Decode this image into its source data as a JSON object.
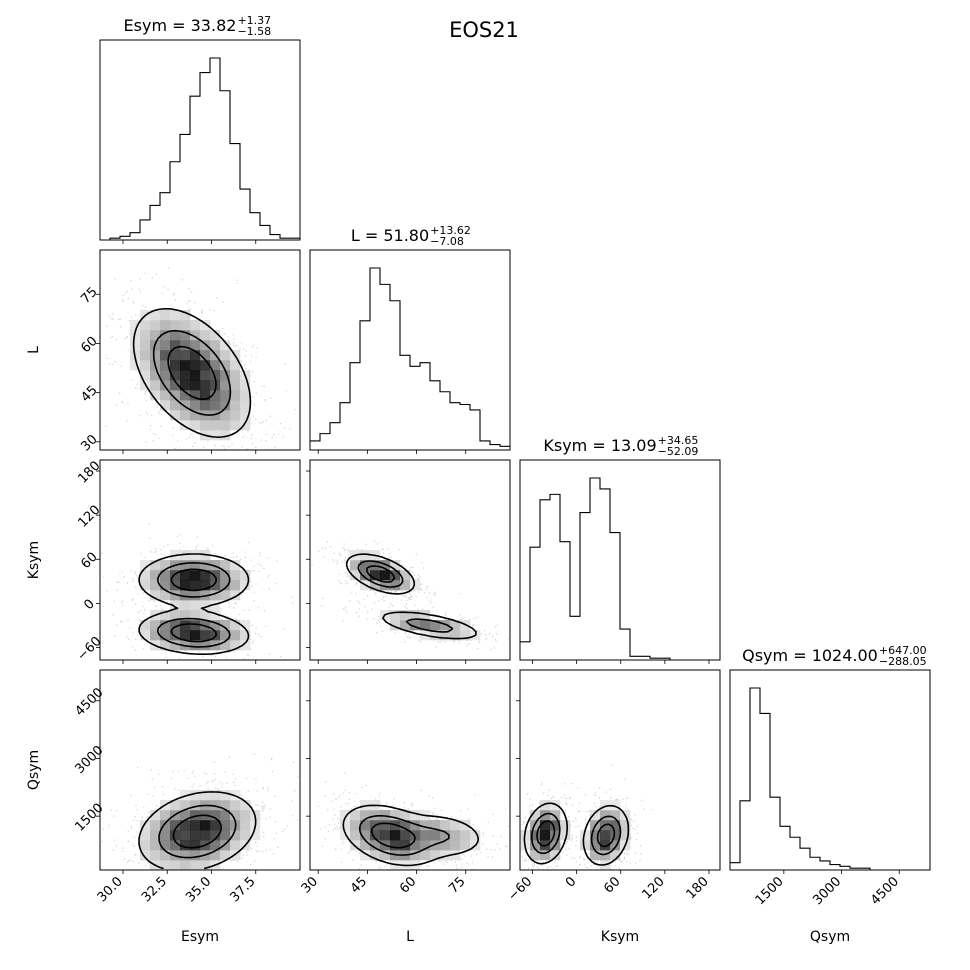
{
  "figure_title": "EOS21",
  "chart_data": {
    "type": "corner",
    "parameters": [
      {
        "name": "Esym",
        "median": "33.82",
        "plus": "+1.37",
        "minus": "−1.58",
        "range": [
          28.7,
          40.0
        ],
        "ticks": [
          30.0,
          32.5,
          35.0,
          37.5
        ],
        "tick_labels": [
          "30.0",
          "32.5",
          "35.0",
          "37.5"
        ]
      },
      {
        "name": "L",
        "median": "51.80",
        "plus": "+13.62",
        "minus": "−7.08",
        "range": [
          27.5,
          88.5
        ],
        "ticks": [
          30,
          45,
          60,
          75
        ],
        "tick_labels": [
          "30",
          "45",
          "60",
          "75"
        ]
      },
      {
        "name": "Ksym",
        "median": "13.09",
        "plus": "+34.65",
        "minus": "−52.09",
        "range": [
          -77,
          195
        ],
        "ticks": [
          -60,
          0,
          60,
          120,
          180
        ],
        "tick_labels": [
          "−60",
          "0",
          "60",
          "120",
          "180"
        ]
      },
      {
        "name": "Qsym",
        "median": "1024.00",
        "plus": "+647.00",
        "minus": "−288.05",
        "range": [
          100,
          5300
        ],
        "ticks": [
          1500,
          3000,
          4500
        ],
        "tick_labels": [
          "1500",
          "3000",
          "4500"
        ]
      }
    ],
    "histograms": {
      "Esym": {
        "edges": [
          28.7,
          29.265,
          29.83,
          30.395,
          30.96,
          31.525,
          32.09,
          32.655,
          33.22,
          33.785,
          34.35,
          34.915,
          35.48,
          36.045,
          36.61,
          37.175,
          37.74,
          38.305,
          38.87,
          39.435,
          40.0
        ],
        "counts": [
          0,
          1,
          2,
          4,
          11,
          19,
          26,
          43,
          58,
          79,
          92,
          100,
          82,
          53,
          28,
          15,
          8,
          3,
          1,
          1
        ]
      },
      "L": {
        "edges": [
          27.5,
          30.55,
          33.6,
          36.65,
          39.7,
          42.75,
          45.8,
          48.85,
          51.9,
          54.95,
          58.0,
          61.05,
          64.1,
          67.15,
          70.2,
          73.25,
          76.3,
          79.35,
          82.4,
          85.45,
          88.5
        ],
        "counts": [
          5,
          9,
          15,
          26,
          48,
          71,
          100,
          91,
          82,
          52,
          46,
          48,
          38,
          32,
          26,
          25,
          22,
          5,
          3,
          2
        ]
      },
      "Ksym": {
        "edges": [
          -77,
          -63.4,
          -49.8,
          -36.2,
          -22.6,
          -9,
          4.6,
          18.2,
          31.8,
          45.4,
          59,
          72.6,
          86.2,
          99.8,
          113.4,
          127,
          140.6,
          154.2,
          167.8,
          181.4,
          195
        ],
        "counts": [
          10,
          62,
          88,
          91,
          65,
          24,
          81,
          100,
          94,
          70,
          17,
          2,
          2,
          1,
          1,
          0,
          0,
          0,
          0,
          0
        ]
      },
      "Qsym": {
        "edges": [
          100,
          360,
          620,
          880,
          1140,
          1400,
          1660,
          1920,
          2180,
          2440,
          2700,
          2960,
          3220,
          3480,
          3740,
          4000,
          4260,
          4520,
          4780,
          5040,
          5300
        ],
        "counts": [
          4,
          38,
          100,
          86,
          40,
          24,
          18,
          12,
          7,
          5,
          3,
          2,
          1,
          1,
          0,
          0,
          0,
          0,
          0,
          0
        ]
      }
    },
    "contour_levels": [
      0.39,
      0.86,
      0.99
    ],
    "xlabels": [
      "Esym",
      "L",
      "Ksym",
      "Qsym"
    ],
    "ylabels": [
      "L",
      "Ksym",
      "Qsym"
    ]
  }
}
